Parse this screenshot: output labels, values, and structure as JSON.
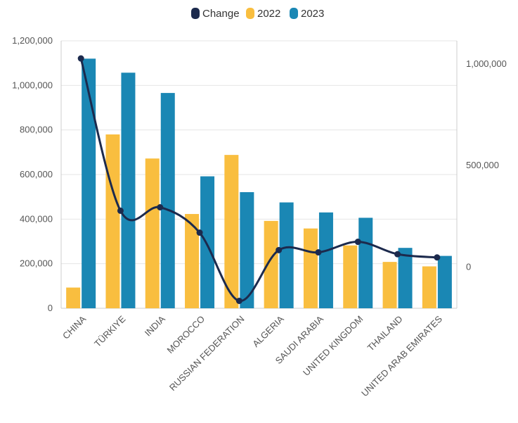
{
  "chart_data": {
    "type": "bar",
    "categories": [
      "CHINA",
      "TÜRKIYE",
      "INDIA",
      "MOROCCO",
      "RUSSIAN FEDERATION",
      "ALGERIA",
      "SAUDI ARABIA",
      "UNITED KINGDOM",
      "THAILAND",
      "UNITED ARAB EMIRATES"
    ],
    "series": [
      {
        "name": "2022",
        "kind": "bar",
        "axis": "left",
        "color": "#F9BE3F",
        "values": [
          93000,
          780000,
          672000,
          423000,
          688000,
          392000,
          358000,
          282000,
          208000,
          188000
        ]
      },
      {
        "name": "2023",
        "kind": "bar",
        "axis": "left",
        "color": "#1A87B4",
        "values": [
          1120000,
          1057000,
          966000,
          592000,
          521000,
          475000,
          430000,
          406000,
          271000,
          235000
        ]
      },
      {
        "name": "Change",
        "kind": "line",
        "axis": "right",
        "color": "#1C2A4D",
        "values": [
          1027000,
          277000,
          294000,
          169000,
          -167000,
          83000,
          72000,
          124000,
          63000,
          47000
        ]
      }
    ],
    "legend": [
      "Change",
      "2022",
      "2023"
    ],
    "legend_position": "top-center",
    "y_left": {
      "min": 0,
      "max": 1200000,
      "ticks": [
        0,
        200000,
        400000,
        600000,
        800000,
        1000000,
        1200000
      ],
      "tick_labels": [
        "0",
        "200,000",
        "400,000",
        "600,000",
        "800,000",
        "1,000,000",
        "1,200,000"
      ]
    },
    "y_right": {
      "min": -200000,
      "max": 1100000,
      "ticks": [
        0,
        500000,
        1000000
      ],
      "tick_labels": [
        "0",
        "500,000",
        "1,000,000"
      ]
    },
    "grid": true
  }
}
